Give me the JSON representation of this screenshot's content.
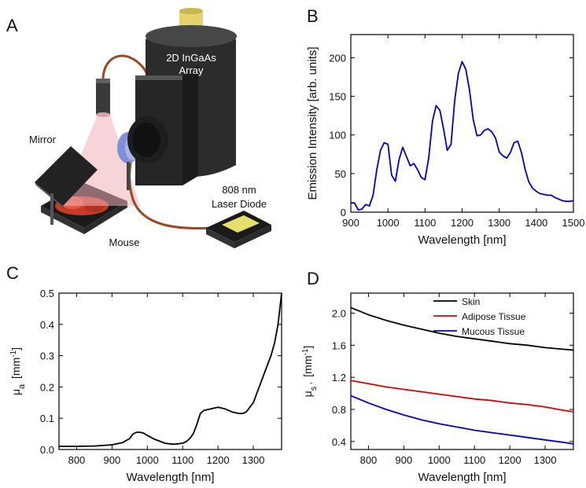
{
  "panel_letters": {
    "a": "A",
    "b": "B",
    "c": "C",
    "d": "D"
  },
  "diagram_labels": {
    "camera_line1": "2D InGaAs",
    "camera_line2": "Array",
    "mirror": "Mirror",
    "laser_line1": "808 nm",
    "laser_line2": "Laser Diode",
    "mouse": "Mouse"
  },
  "colors": {
    "blue": "#0000cc",
    "red": "#dd0000",
    "black": "#000000"
  },
  "chart_data": [
    {
      "panel": "B",
      "type": "line",
      "xlabel": "Wavelength [nm]",
      "ylabel": "Emission Intensity [arb. units]",
      "xlim": [
        900,
        1500
      ],
      "ylim": [
        0,
        230
      ],
      "xticks": [
        900,
        1000,
        1100,
        1200,
        1300,
        1400,
        1500
      ],
      "yticks": [
        0,
        50,
        100,
        150,
        200
      ],
      "series": [
        {
          "color": "#0000cc",
          "x": [
            900,
            910,
            920,
            930,
            940,
            950,
            960,
            970,
            980,
            990,
            1000,
            1010,
            1020,
            1030,
            1040,
            1050,
            1060,
            1070,
            1080,
            1090,
            1100,
            1110,
            1120,
            1130,
            1140,
            1150,
            1160,
            1170,
            1180,
            1190,
            1200,
            1210,
            1220,
            1230,
            1240,
            1250,
            1260,
            1270,
            1280,
            1290,
            1300,
            1310,
            1320,
            1330,
            1340,
            1350,
            1360,
            1370,
            1380,
            1390,
            1400,
            1410,
            1420,
            1430,
            1440,
            1450,
            1460,
            1470,
            1480,
            1490,
            1500
          ],
          "y": [
            12,
            12,
            3,
            4,
            10,
            8,
            22,
            55,
            80,
            90,
            88,
            48,
            40,
            68,
            84,
            72,
            60,
            63,
            55,
            45,
            42,
            70,
            118,
            138,
            132,
            108,
            80,
            88,
            145,
            180,
            195,
            185,
            158,
            120,
            99,
            100,
            106,
            108,
            104,
            96,
            78,
            73,
            70,
            77,
            90,
            92,
            77,
            55,
            39,
            31,
            27,
            24,
            23,
            22,
            22,
            19,
            17,
            15,
            14,
            14,
            15
          ]
        }
      ]
    },
    {
      "panel": "C",
      "type": "line",
      "xlabel": "Wavelength [nm]",
      "ylabel": "μa [mm-1]",
      "xlim": [
        750,
        1380
      ],
      "ylim": [
        0,
        0.5
      ],
      "xticks": [
        800,
        900,
        1000,
        1100,
        1200,
        1300
      ],
      "yticks": [
        0.0,
        0.1,
        0.2,
        0.3,
        0.4,
        0.5
      ],
      "series": [
        {
          "color": "#000000",
          "x": [
            750,
            800,
            850,
            900,
            930,
            950,
            960,
            970,
            980,
            990,
            1000,
            1020,
            1050,
            1070,
            1080,
            1100,
            1110,
            1120,
            1130,
            1140,
            1150,
            1160,
            1180,
            1200,
            1220,
            1240,
            1260,
            1270,
            1280,
            1300,
            1320,
            1340,
            1350,
            1360,
            1370,
            1380
          ],
          "y": [
            0.01,
            0.01,
            0.011,
            0.015,
            0.022,
            0.035,
            0.05,
            0.055,
            0.055,
            0.052,
            0.045,
            0.033,
            0.02,
            0.017,
            0.017,
            0.02,
            0.025,
            0.035,
            0.05,
            0.08,
            0.115,
            0.125,
            0.13,
            0.135,
            0.13,
            0.12,
            0.115,
            0.115,
            0.12,
            0.15,
            0.21,
            0.27,
            0.3,
            0.34,
            0.4,
            0.5
          ]
        }
      ]
    },
    {
      "panel": "D",
      "type": "line",
      "xlabel": "Wavelength [nm]",
      "ylabel": "μs ' [mm-1]",
      "xlim": [
        750,
        1380
      ],
      "ylim": [
        0.3,
        2.25
      ],
      "xticks": [
        800,
        900,
        1000,
        1100,
        1200,
        1300
      ],
      "yticks": [
        0.4,
        0.8,
        1.2,
        1.6,
        2.0
      ],
      "legend": "top-right",
      "series": [
        {
          "name": "Skin",
          "color": "#000000",
          "x": [
            750,
            800,
            850,
            900,
            950,
            1000,
            1050,
            1100,
            1150,
            1200,
            1250,
            1300,
            1350,
            1380
          ],
          "y": [
            2.07,
            1.98,
            1.91,
            1.85,
            1.8,
            1.75,
            1.71,
            1.68,
            1.65,
            1.62,
            1.6,
            1.57,
            1.55,
            1.54
          ]
        },
        {
          "name": "Adipose Tissue",
          "color": "#dd0000",
          "x": [
            750,
            800,
            850,
            900,
            950,
            1000,
            1050,
            1100,
            1150,
            1200,
            1250,
            1300,
            1350,
            1380
          ],
          "y": [
            1.16,
            1.12,
            1.08,
            1.05,
            1.02,
            0.99,
            0.96,
            0.93,
            0.91,
            0.88,
            0.86,
            0.83,
            0.79,
            0.77
          ]
        },
        {
          "name": "Mucous Tissue",
          "color": "#0000cc",
          "x": [
            750,
            800,
            850,
            900,
            950,
            1000,
            1050,
            1100,
            1150,
            1200,
            1250,
            1300,
            1350,
            1380
          ],
          "y": [
            0.97,
            0.88,
            0.8,
            0.73,
            0.67,
            0.62,
            0.58,
            0.54,
            0.51,
            0.48,
            0.45,
            0.42,
            0.39,
            0.37
          ]
        }
      ]
    }
  ]
}
